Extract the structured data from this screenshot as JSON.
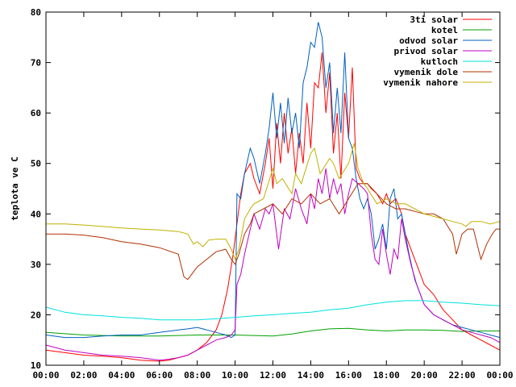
{
  "chart_data": {
    "type": "line",
    "title": "",
    "xlabel": "",
    "ylabel": "teplota ve C",
    "xlim": [
      "00:00",
      "24:00"
    ],
    "ylim": [
      10,
      80
    ],
    "x_ticks": [
      "00:00",
      "02:00",
      "04:00",
      "06:00",
      "08:00",
      "10:00",
      "12:00",
      "14:00",
      "16:00",
      "18:00",
      "20:00",
      "22:00",
      "00:00"
    ],
    "y_ticks": [
      "10",
      "20",
      "30",
      "40",
      "50",
      "60",
      "70",
      "80"
    ],
    "grid": false,
    "legend_position": "top-right",
    "series": [
      {
        "name": "3ti solar",
        "color": "#ff0000",
        "x": [
          0,
          1,
          2,
          3,
          4,
          5,
          6,
          6.5,
          7,
          7.5,
          8,
          8.5,
          9,
          9.3,
          9.6,
          9.9,
          10.1,
          10.3,
          10.5,
          10.8,
          11,
          11.3,
          11.6,
          11.8,
          12,
          12.2,
          12.4,
          12.6,
          12.8,
          13,
          13.2,
          13.4,
          13.6,
          13.8,
          14,
          14.2,
          14.4,
          14.6,
          14.8,
          15,
          15.2,
          15.4,
          15.6,
          15.8,
          16,
          16.2,
          16.4,
          16.6,
          16.8,
          17,
          17.2,
          17.5,
          17.8,
          18,
          18.2,
          18.5,
          18.8,
          19,
          19.3,
          19.6,
          20,
          20.5,
          21,
          21.5,
          22,
          22.5,
          23,
          23.5,
          24
        ],
        "y": [
          13,
          12.5,
          12,
          11.8,
          11.5,
          11,
          10.8,
          11,
          11.5,
          12,
          13,
          14.5,
          17,
          20,
          25,
          32,
          38,
          44,
          48,
          50,
          47,
          44,
          50,
          55,
          45,
          58,
          50,
          60,
          52,
          57,
          48,
          56,
          50,
          62,
          53,
          66,
          65,
          72,
          60,
          68,
          52,
          60,
          47,
          64,
          55,
          69,
          49,
          47,
          46,
          46,
          45,
          44,
          42,
          44,
          42,
          43,
          40,
          36,
          33,
          30,
          26,
          24,
          21,
          19,
          17,
          16,
          15,
          14,
          13
        ]
      },
      {
        "name": "kotel",
        "color": "#00a000",
        "x": [
          0,
          2,
          4,
          6,
          8,
          10,
          12,
          13,
          14,
          15,
          16,
          17,
          18,
          19,
          20,
          21,
          22,
          23,
          24
        ],
        "y": [
          16.5,
          16,
          15.8,
          15.8,
          16,
          16,
          15.8,
          16.2,
          16.8,
          17.2,
          17.3,
          17,
          16.8,
          17,
          17,
          16.9,
          16.7,
          16.8,
          16.8
        ]
      },
      {
        "name": "odvod solar",
        "color": "#0060c0",
        "x": [
          0,
          1,
          2,
          3,
          4,
          5,
          6,
          7,
          7.5,
          8,
          8.5,
          9,
          9.5,
          9.8,
          10,
          10.1,
          10.3,
          10.5,
          10.8,
          11,
          11.3,
          11.6,
          11.8,
          12,
          12.2,
          12.4,
          12.6,
          12.8,
          13,
          13.2,
          13.4,
          13.6,
          13.8,
          14,
          14.2,
          14.4,
          14.6,
          14.8,
          15,
          15.2,
          15.4,
          15.6,
          15.8,
          16,
          16.2,
          16.4,
          16.6,
          16.8,
          17,
          17.2,
          17.4,
          17.6,
          17.8,
          18,
          18.2,
          18.4,
          18.6,
          18.8,
          19,
          19.2,
          19.5,
          19.8,
          20,
          20.5,
          21,
          21.5,
          22,
          22.5,
          23,
          23.5,
          24
        ],
        "y": [
          16,
          15.5,
          15.5,
          15.8,
          16,
          16,
          16.5,
          17,
          17.2,
          17.5,
          17,
          16.5,
          16,
          15.5,
          16,
          44,
          43,
          48,
          53,
          51,
          46,
          52,
          57,
          64,
          55,
          62,
          54,
          63,
          56,
          60,
          53,
          66,
          69,
          74,
          73,
          78,
          75,
          65,
          70,
          56,
          65,
          56,
          72,
          55,
          53,
          47,
          43,
          41,
          43,
          40,
          33,
          35,
          38,
          33,
          43,
          45,
          39,
          40,
          36,
          32,
          27,
          24,
          22,
          20,
          19,
          18,
          17.5,
          17,
          16.5,
          16,
          15.5
        ]
      },
      {
        "name": "privod solar",
        "color": "#c000c0",
        "x": [
          0,
          1,
          2,
          3,
          4,
          5,
          6,
          6.5,
          7,
          7.5,
          8,
          8.5,
          9,
          9.5,
          9.8,
          10,
          10.1,
          10.3,
          10.5,
          10.8,
          11,
          11.3,
          11.6,
          11.8,
          12,
          12.3,
          12.6,
          12.9,
          13.2,
          13.5,
          13.8,
          14,
          14.2,
          14.4,
          14.6,
          14.8,
          15,
          15.2,
          15.4,
          15.6,
          15.8,
          16,
          16.2,
          16.5,
          16.8,
          17,
          17.2,
          17.4,
          17.6,
          17.8,
          18,
          18.2,
          18.4,
          18.6,
          18.8,
          19,
          19.3,
          19.6,
          20,
          20.5,
          21,
          21.5,
          22,
          22.5,
          23,
          23.5,
          24
        ],
        "y": [
          14,
          13,
          12.5,
          12,
          11.8,
          11.5,
          11,
          11.2,
          11.5,
          12,
          13,
          14,
          15,
          15.5,
          16,
          17,
          26,
          28,
          32,
          37,
          40,
          37,
          41,
          40,
          42,
          33,
          41,
          39,
          45,
          41,
          38,
          44,
          41,
          47,
          44,
          49,
          43,
          47,
          44,
          46,
          40,
          44,
          47,
          46,
          45,
          44,
          36,
          31,
          30,
          37,
          32,
          28,
          33,
          31,
          39,
          35,
          30,
          26,
          22,
          20,
          19,
          18,
          17,
          16.5,
          16,
          15.5,
          14.5
        ]
      },
      {
        "name": "kutloch",
        "color": "#00e0e0",
        "x": [
          0,
          1,
          2,
          3,
          4,
          5,
          6,
          7,
          8,
          9,
          10,
          11,
          12,
          13,
          14,
          15,
          16,
          17,
          18,
          19,
          20,
          21,
          22,
          23,
          24
        ],
        "y": [
          21.5,
          20.5,
          20,
          19.8,
          19.5,
          19.3,
          19,
          19,
          19,
          19.2,
          19.5,
          19.8,
          20,
          20.3,
          20.5,
          21,
          21.3,
          22,
          22.5,
          22.8,
          22.8,
          22.5,
          22.3,
          22,
          21.8
        ]
      },
      {
        "name": "vymenik dole",
        "color": "#b03000",
        "x": [
          0,
          1,
          2,
          3,
          4,
          5,
          6,
          7,
          7.3,
          7.5,
          7.8,
          8,
          8.5,
          9,
          9.5,
          9.8,
          10,
          10.2,
          10.5,
          10.8,
          11,
          11.5,
          12,
          12.5,
          13,
          13.5,
          14,
          14.5,
          15,
          15.5,
          16,
          16.5,
          17,
          17.5,
          18,
          18.5,
          19,
          19.5,
          20,
          20.5,
          21,
          21.5,
          21.7,
          22,
          22.3,
          22.6,
          23,
          23.3,
          23.6,
          23.8,
          24
        ],
        "y": [
          36,
          36,
          35.8,
          35.3,
          34.5,
          34,
          33.3,
          32,
          27.5,
          27,
          28.5,
          29.5,
          31,
          32.5,
          33,
          31,
          30,
          32,
          36,
          38,
          40,
          41,
          42,
          40,
          43,
          42,
          44,
          42,
          43,
          40,
          43,
          46,
          46,
          44,
          42,
          41,
          41,
          40.5,
          40,
          40,
          39,
          36,
          32,
          36,
          37,
          37,
          31,
          34,
          36,
          37,
          37
        ]
      },
      {
        "name": "vymenik nahore",
        "color": "#c0b000",
        "x": [
          0,
          1,
          2,
          3,
          4,
          5,
          6,
          7,
          7.5,
          7.8,
          8,
          8.3,
          8.6,
          9,
          9.5,
          9.8,
          10,
          10.2,
          10.5,
          10.8,
          11,
          11.5,
          12,
          12.2,
          12.5,
          13,
          13.2,
          13.5,
          14,
          14.2,
          14.5,
          15,
          15.2,
          15.5,
          16,
          16.3,
          16.5,
          16.8,
          17,
          17.5,
          18,
          18.5,
          19,
          19.5,
          20,
          20.5,
          21,
          21.5,
          22,
          22.2,
          22.5,
          23,
          23.5,
          24
        ],
        "y": [
          38,
          38,
          37.8,
          37.5,
          37.2,
          37,
          36.8,
          36.5,
          36,
          34,
          34.5,
          33.5,
          34.8,
          35,
          35,
          33,
          31,
          33,
          39,
          41,
          42,
          43,
          49,
          46,
          47,
          44,
          48,
          46,
          52,
          53,
          48,
          51,
          50,
          47,
          50,
          54,
          49,
          46,
          45,
          42,
          43,
          42,
          42,
          41,
          40,
          39.5,
          39,
          38.5,
          38,
          37.5,
          38.5,
          38.5,
          38,
          38.5
        ]
      }
    ]
  }
}
